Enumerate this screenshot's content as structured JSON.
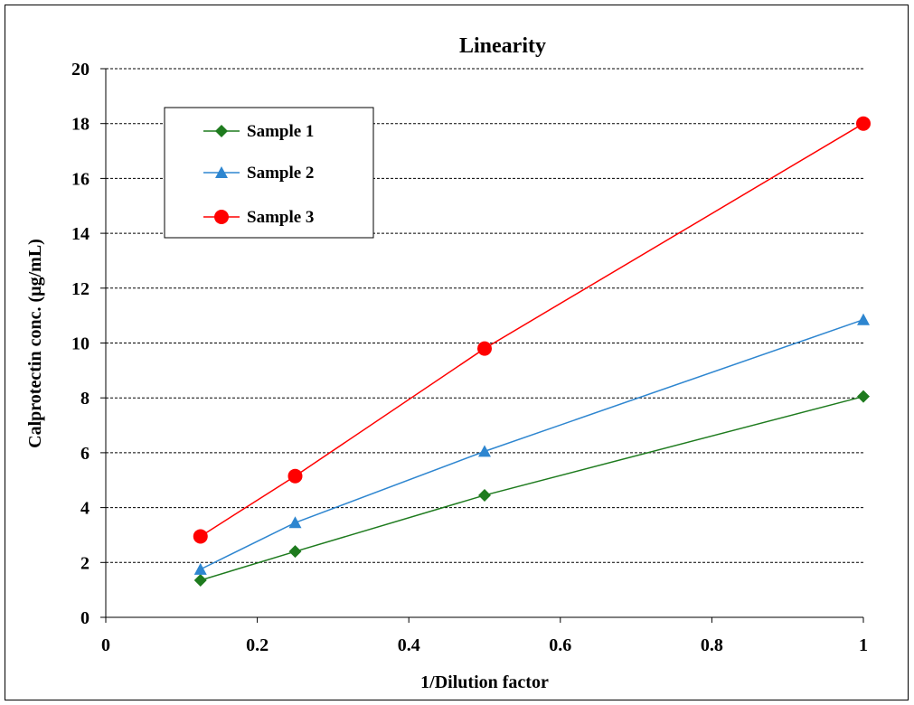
{
  "chart_data": {
    "type": "line",
    "title": "Linearity",
    "xlabel": "1/Dilution factor",
    "ylabel": "Calprotectin conc. (µg/mL)",
    "xlim": [
      0,
      1
    ],
    "ylim": [
      0,
      20
    ],
    "xticks": [
      0,
      0.2,
      0.4,
      0.6,
      0.8,
      1
    ],
    "xtick_labels": [
      "0",
      "0.2",
      "0.4",
      "0.6",
      "0.8",
      "1"
    ],
    "yticks": [
      0,
      2,
      4,
      6,
      8,
      10,
      12,
      14,
      16,
      18,
      20
    ],
    "ytick_labels": [
      "0",
      "2",
      "4",
      "6",
      "8",
      "10",
      "12",
      "14",
      "16",
      "18",
      "20"
    ],
    "grid": "horizontal dashed",
    "legend_position": "top-left",
    "series": [
      {
        "name": "Sample 1",
        "color": "#1e7b1e",
        "marker": "diamond",
        "x": [
          0.125,
          0.25,
          0.5,
          1
        ],
        "y": [
          1.35,
          2.4,
          4.45,
          8.05
        ]
      },
      {
        "name": "Sample 2",
        "color": "#2e86d0",
        "marker": "triangle",
        "x": [
          0.125,
          0.25,
          0.5,
          1
        ],
        "y": [
          1.75,
          3.45,
          6.05,
          10.85
        ]
      },
      {
        "name": "Sample 3",
        "color": "#ff0000",
        "marker": "circle",
        "x": [
          0.125,
          0.25,
          0.5,
          1
        ],
        "y": [
          2.95,
          5.15,
          9.8,
          18
        ]
      }
    ]
  }
}
